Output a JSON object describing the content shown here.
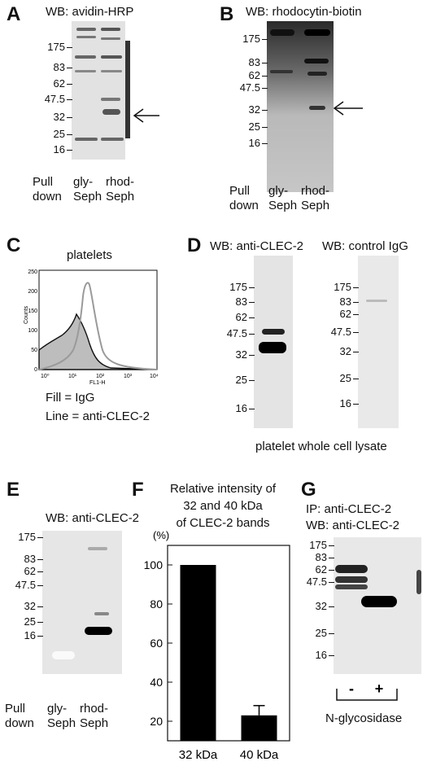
{
  "panels": {
    "A": {
      "letter": "A",
      "title": "WB: avidin-HRP",
      "markers": [
        "175",
        "83",
        "62",
        "47.5",
        "32",
        "25",
        "16"
      ],
      "pull": [
        "Pull",
        "down"
      ],
      "lanes": [
        [
          "gly-",
          "Seph"
        ],
        [
          "rhod-",
          "Seph"
        ]
      ]
    },
    "B": {
      "letter": "B",
      "title": "WB: rhodocytin-biotin",
      "markers": [
        "175",
        "83",
        "62",
        "47.5",
        "32",
        "25",
        "16"
      ],
      "pull": [
        "Pull",
        "down"
      ],
      "lanes": [
        [
          "gly-",
          "Seph"
        ],
        [
          "rhod-",
          "Seph"
        ]
      ]
    },
    "C": {
      "letter": "C",
      "title": "platelets",
      "ylabel": "Counts",
      "xlabel": "FL1-H",
      "yticks": [
        "0",
        "50",
        "100",
        "150",
        "200",
        "250"
      ],
      "xticks": [
        "10⁰",
        "10¹",
        "10²",
        "10³",
        "10⁴"
      ],
      "legend": [
        "Fill = IgG",
        "Line = anti-CLEC-2"
      ]
    },
    "D": {
      "letter": "D",
      "title_left": "WB: anti-CLEC-2",
      "title_right": "WB: control IgG",
      "markers": [
        "175",
        "83",
        "62",
        "47.5",
        "32",
        "25",
        "16"
      ],
      "caption": "platelet whole cell lysate"
    },
    "E": {
      "letter": "E",
      "title": "WB: anti-CLEC-2",
      "markers": [
        "175",
        "83",
        "62",
        "47.5",
        "32",
        "25",
        "16"
      ],
      "pull": [
        "Pull",
        "down"
      ],
      "lanes": [
        [
          "gly-",
          "Seph"
        ],
        [
          "rhod-",
          "Seph"
        ]
      ]
    },
    "F": {
      "letter": "F",
      "title": [
        "Relative intensity of",
        "32 and 40 kDa",
        "of CLEC-2 bands"
      ]
    },
    "G": {
      "letter": "G",
      "title": [
        "IP: anti-CLEC-2",
        "WB: anti-CLEC-2"
      ],
      "markers": [
        "175",
        "83",
        "62",
        "47.5",
        "32",
        "25",
        "16"
      ],
      "lanes": [
        "-",
        "+"
      ],
      "caption": "N-glycosidase"
    }
  },
  "chart_data": {
    "type": "bar",
    "title": "Relative intensity of 32 and 40 kDa of CLEC-2 bands",
    "ylabel": "(%)",
    "categories": [
      "32 kDa",
      "40 kDa"
    ],
    "values": [
      100,
      23
    ],
    "errors": [
      0,
      5
    ],
    "ylim": [
      10,
      110
    ],
    "yticks": [
      20,
      40,
      60,
      80,
      100
    ]
  }
}
